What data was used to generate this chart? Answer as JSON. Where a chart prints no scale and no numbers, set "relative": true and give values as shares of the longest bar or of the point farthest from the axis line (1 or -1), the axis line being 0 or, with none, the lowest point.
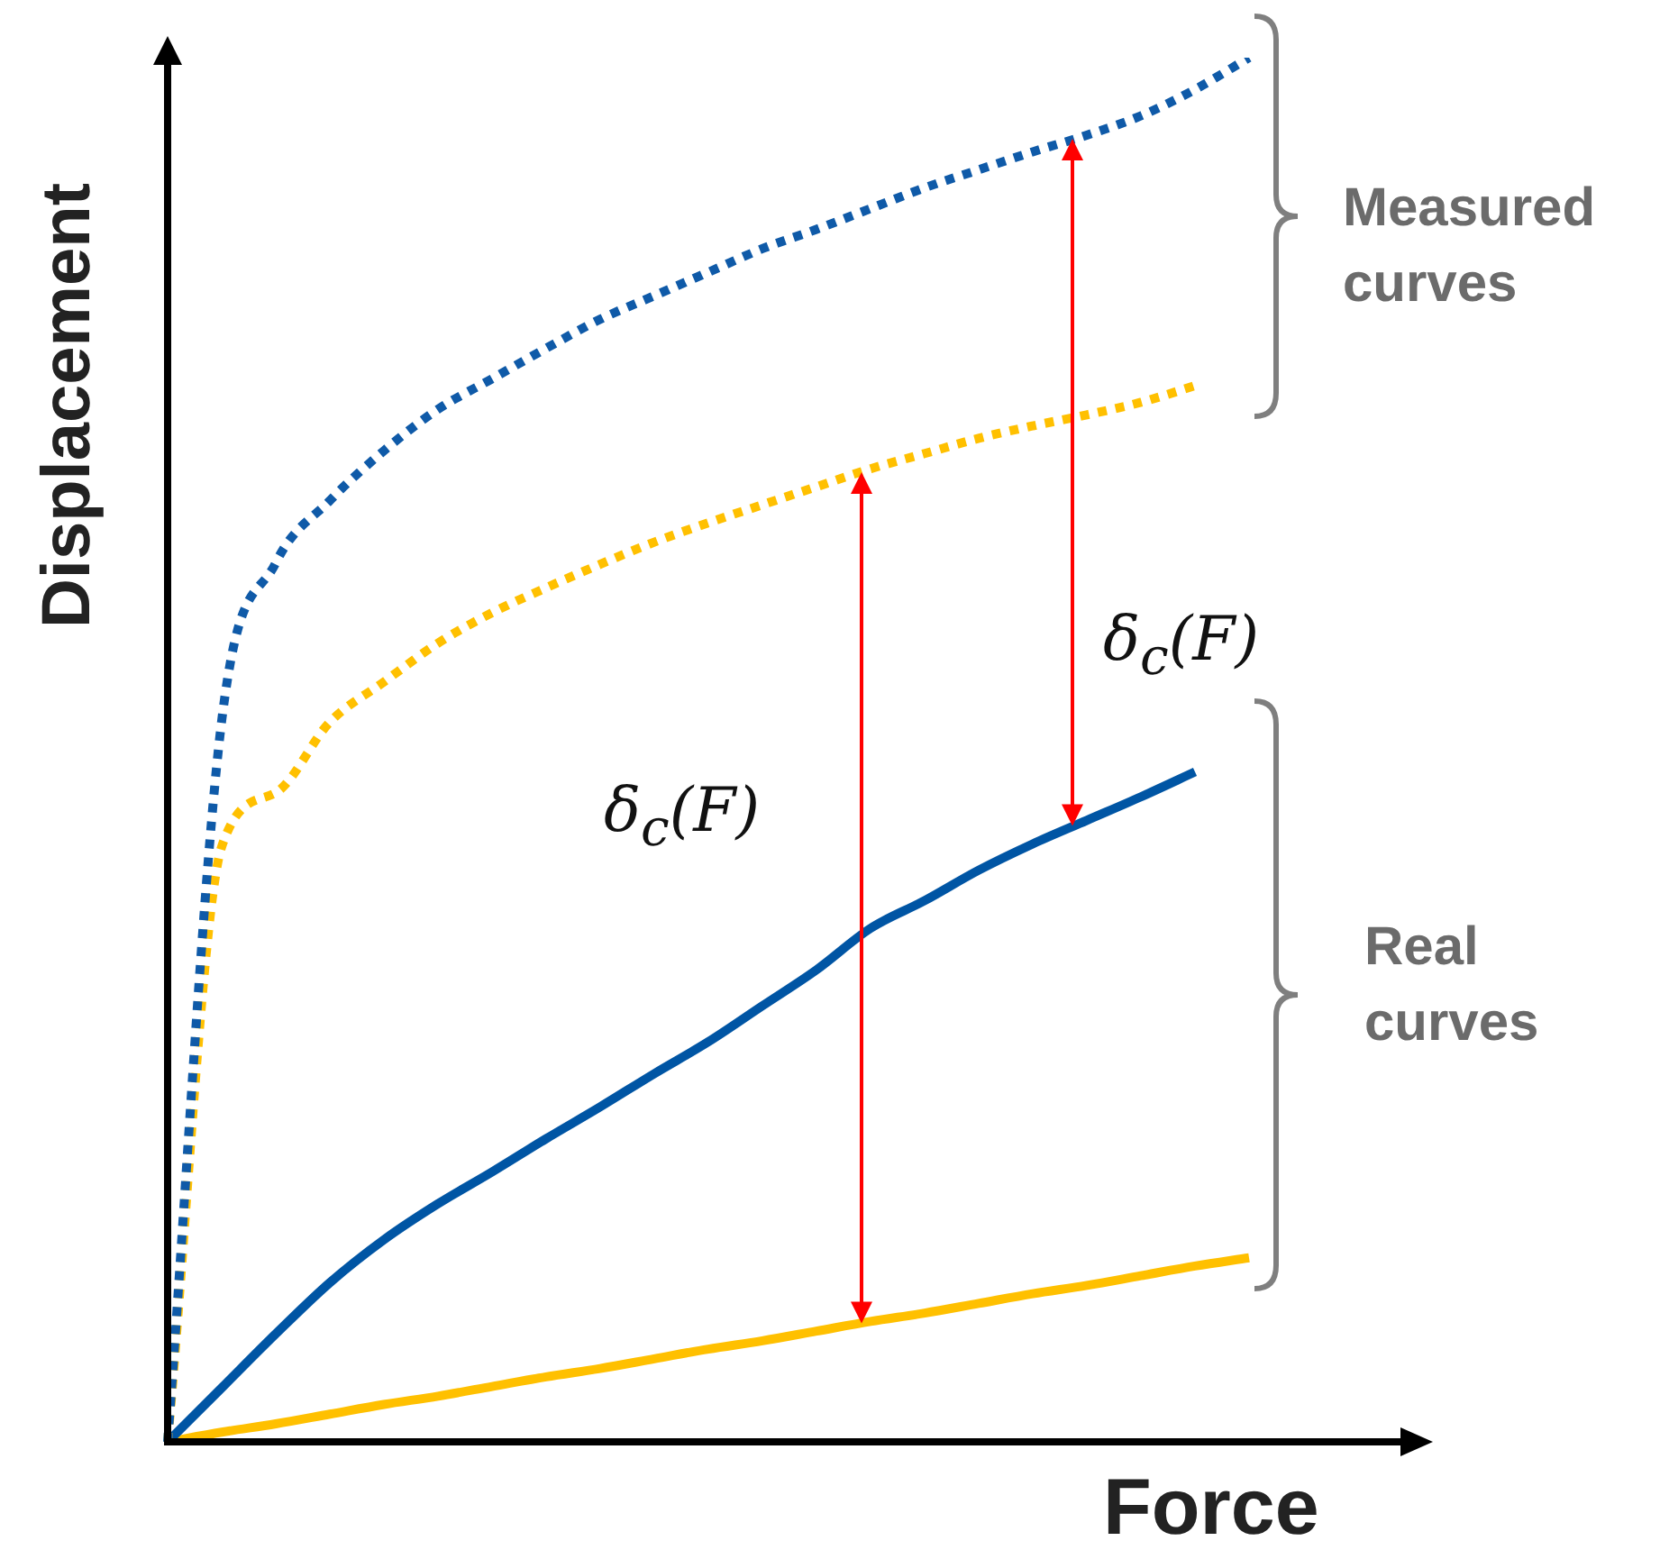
{
  "chart_data": {
    "type": "line",
    "relative": true,
    "xlabel": "Force",
    "ylabel": "Displacement",
    "legend": false,
    "marker": "none",
    "categories": [
      null,
      null,
      null,
      null,
      null,
      null,
      null,
      null,
      null,
      null,
      null,
      null,
      null,
      null,
      null,
      null,
      null,
      null,
      null,
      null,
      null,
      null,
      null,
      null
    ],
    "series": [
      {
        "color": "#0f5aa8",
        "line_style": "dotted",
        "values": [
          0,
          0.521,
          0.635,
          0.68,
          0.716,
          0.746,
          0.768,
          0.79,
          0.811,
          0.828,
          0.845,
          0.862,
          0.876,
          0.891,
          0.906,
          0.919,
          0.932,
          0.944,
          0.958,
          0.977,
          1.0,
          null,
          null,
          null
        ]
      },
      {
        "color": "#ffc000",
        "line_style": "dotted",
        "values": [
          0,
          0.43,
          0.469,
          0.52,
          0.549,
          0.577,
          0.599,
          0.617,
          0.634,
          0.65,
          0.664,
          0.677,
          0.69,
          0.703,
          0.714,
          0.725,
          0.734,
          0.742,
          0.751,
          0.763,
          null,
          null,
          null,
          null
        ]
      },
      {
        "color": "#0055a4",
        "line_style": "solid",
        "values": [
          0,
          0.039,
          0.078,
          0.115,
          0.146,
          0.172,
          0.195,
          0.219,
          0.242,
          0.266,
          0.289,
          0.315,
          0.341,
          0.371,
          0.391,
          0.413,
          0.432,
          0.449,
          0.466,
          0.484,
          null,
          null,
          null,
          null
        ]
      },
      {
        "color": "#ffc000",
        "line_style": "solid",
        "values": [
          0,
          0.007,
          0.013,
          0.02,
          0.027,
          0.033,
          0.04,
          0.047,
          0.053,
          0.06,
          0.067,
          0.073,
          0.08,
          0.087,
          0.093,
          0.1,
          0.107,
          0.113,
          0.12,
          0.127,
          0.133,
          null,
          null,
          null
        ]
      }
    ],
    "annotations": [
      "Measured curves",
      "Real curves",
      "δ$_{c}$(F)",
      "δ$_{c}$(F)"
    ]
  }
}
